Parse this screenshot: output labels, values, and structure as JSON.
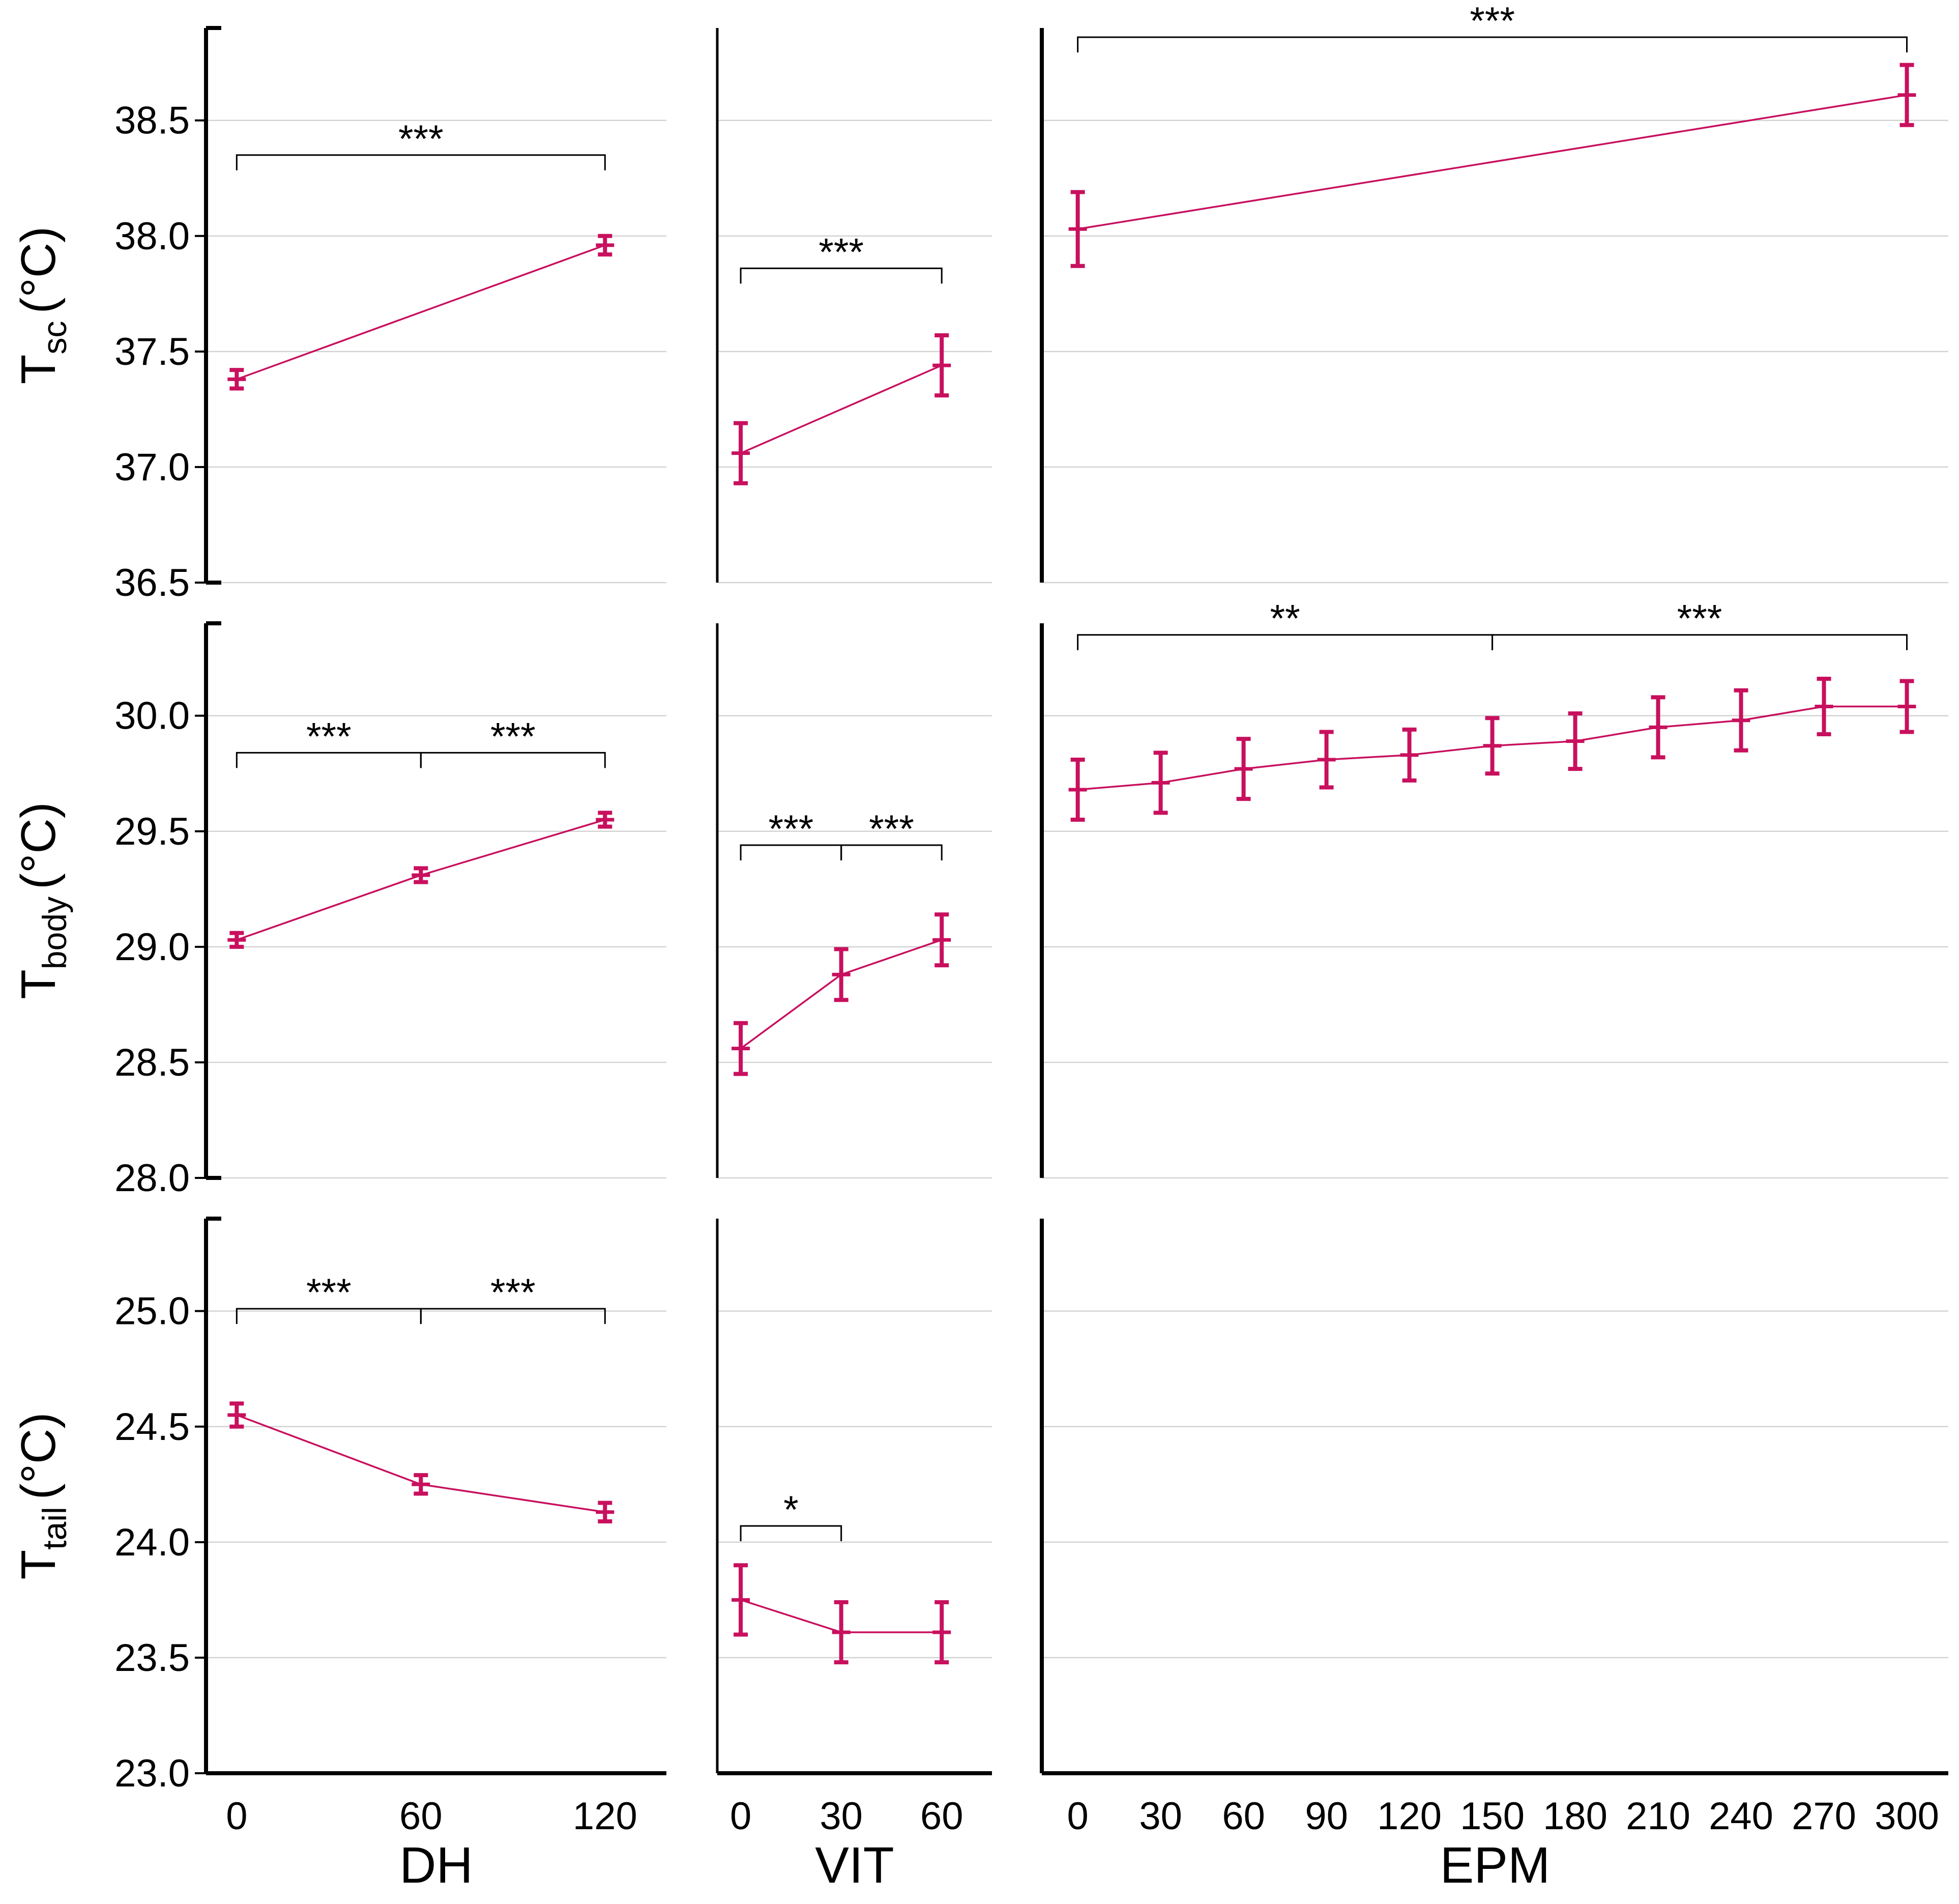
{
  "chart_data": {
    "type": "line",
    "layout": "3x3 panel grid",
    "style": {
      "series_color": "#c8105e",
      "gridline_color": "#d3d3d3",
      "axis_color": "#000000"
    },
    "rows": [
      {
        "key": "tsc",
        "ylabel": {
          "main": "T",
          "sub": "sc",
          "unit": "(°C)"
        },
        "ylim": [
          36.5,
          38.9
        ],
        "yticks": [
          36.5,
          37.0,
          37.5,
          38.0,
          38.5
        ],
        "ytick_labels": [
          "36.5",
          "37.0",
          "37.5",
          "38.0",
          "38.5"
        ]
      },
      {
        "key": "tbody",
        "ylabel": {
          "main": "T",
          "sub": "body",
          "unit": "(°C)"
        },
        "ylim": [
          28.0,
          30.4
        ],
        "yticks": [
          28.0,
          28.5,
          29.0,
          29.5,
          30.0
        ],
        "ytick_labels": [
          "28.0",
          "28.5",
          "29.0",
          "29.5",
          "30.0"
        ]
      },
      {
        "key": "ttail",
        "ylabel": {
          "main": "T",
          "sub": "tail",
          "unit": "(°C)"
        },
        "ylim": [
          23.0,
          25.4
        ],
        "yticks": [
          23.0,
          23.5,
          24.0,
          24.5,
          25.0
        ],
        "ytick_labels": [
          "23.0",
          "23.5",
          "24.0",
          "24.5",
          "25.0"
        ]
      }
    ],
    "columns": [
      {
        "key": "dh",
        "xlabel": "DH",
        "xlim": [
          -10,
          140
        ],
        "xticks": [
          0,
          60,
          120
        ],
        "xtick_labels": [
          "0",
          "60",
          "120"
        ]
      },
      {
        "key": "vit",
        "xlabel": "VIT",
        "xlim": [
          -7,
          75
        ],
        "xticks": [
          0,
          30,
          60
        ],
        "xtick_labels": [
          "0",
          "30",
          "60"
        ]
      },
      {
        "key": "epm",
        "xlabel": "EPM",
        "xlim": [
          -13,
          315
        ],
        "xticks": [
          0,
          30,
          60,
          90,
          120,
          150,
          180,
          210,
          240,
          270,
          300
        ],
        "xtick_labels": [
          "0",
          "30",
          "60",
          "90",
          "120",
          "150",
          "180",
          "210",
          "240",
          "270",
          "300"
        ]
      }
    ],
    "panels": [
      {
        "row": 0,
        "col": 0,
        "series": [
          {
            "x": 0,
            "y": 37.38,
            "err": 0.04
          },
          {
            "x": 120,
            "y": 37.96,
            "err": 0.04
          }
        ],
        "significance": [
          {
            "x1": 0,
            "x2": 120,
            "y": 38.35,
            "label": "***"
          }
        ]
      },
      {
        "row": 0,
        "col": 1,
        "series": [
          {
            "x": 0,
            "y": 37.06,
            "err": 0.13
          },
          {
            "x": 60,
            "y": 37.44,
            "err": 0.13
          }
        ],
        "significance": [
          {
            "x1": 0,
            "x2": 60,
            "y": 37.86,
            "label": "***"
          }
        ]
      },
      {
        "row": 0,
        "col": 2,
        "series": [
          {
            "x": 0,
            "y": 38.03,
            "err": 0.16
          },
          {
            "x": 300,
            "y": 38.61,
            "err": 0.13
          }
        ],
        "significance": [
          {
            "x1": 0,
            "x2": 300,
            "y": 38.86,
            "label": "***"
          }
        ]
      },
      {
        "row": 1,
        "col": 0,
        "series": [
          {
            "x": 0,
            "y": 29.03,
            "err": 0.03
          },
          {
            "x": 60,
            "y": 29.31,
            "err": 0.03
          },
          {
            "x": 120,
            "y": 29.55,
            "err": 0.03
          }
        ],
        "significance": [
          {
            "x1": 0,
            "x2": 60,
            "y": 29.84,
            "label": "***"
          },
          {
            "x1": 60,
            "x2": 120,
            "y": 29.84,
            "label": "***"
          }
        ]
      },
      {
        "row": 1,
        "col": 1,
        "series": [
          {
            "x": 0,
            "y": 28.56,
            "err": 0.11
          },
          {
            "x": 30,
            "y": 28.88,
            "err": 0.11
          },
          {
            "x": 60,
            "y": 29.03,
            "err": 0.11
          }
        ],
        "significance": [
          {
            "x1": 0,
            "x2": 30,
            "y": 29.44,
            "label": "***"
          },
          {
            "x1": 30,
            "x2": 60,
            "y": 29.44,
            "label": "***"
          }
        ]
      },
      {
        "row": 1,
        "col": 2,
        "series": [
          {
            "x": 0,
            "y": 29.68,
            "err": 0.13
          },
          {
            "x": 30,
            "y": 29.71,
            "err": 0.13
          },
          {
            "x": 60,
            "y": 29.77,
            "err": 0.13
          },
          {
            "x": 90,
            "y": 29.81,
            "err": 0.12
          },
          {
            "x": 120,
            "y": 29.83,
            "err": 0.11
          },
          {
            "x": 150,
            "y": 29.87,
            "err": 0.12
          },
          {
            "x": 180,
            "y": 29.89,
            "err": 0.12
          },
          {
            "x": 210,
            "y": 29.95,
            "err": 0.13
          },
          {
            "x": 240,
            "y": 29.98,
            "err": 0.13
          },
          {
            "x": 270,
            "y": 30.04,
            "err": 0.12
          },
          {
            "x": 300,
            "y": 30.04,
            "err": 0.11
          }
        ],
        "significance": [
          {
            "x1": 0,
            "x2": 150,
            "y": 30.35,
            "label": "**"
          },
          {
            "x1": 150,
            "x2": 300,
            "y": 30.35,
            "label": "***"
          }
        ]
      },
      {
        "row": 2,
        "col": 0,
        "series": [
          {
            "x": 0,
            "y": 24.55,
            "err": 0.05
          },
          {
            "x": 60,
            "y": 24.25,
            "err": 0.04
          },
          {
            "x": 120,
            "y": 24.13,
            "err": 0.04
          }
        ],
        "significance": [
          {
            "x1": 0,
            "x2": 60,
            "y": 25.01,
            "label": "***"
          },
          {
            "x1": 60,
            "x2": 120,
            "y": 25.01,
            "label": "***"
          }
        ]
      },
      {
        "row": 2,
        "col": 1,
        "series": [
          {
            "x": 0,
            "y": 23.75,
            "err": 0.15
          },
          {
            "x": 30,
            "y": 23.61,
            "err": 0.13
          },
          {
            "x": 60,
            "y": 23.61,
            "err": 0.13
          }
        ],
        "significance": [
          {
            "x1": 0,
            "x2": 30,
            "y": 24.07,
            "label": "*"
          }
        ]
      },
      {
        "row": 2,
        "col": 2,
        "series": [],
        "significance": []
      }
    ]
  }
}
